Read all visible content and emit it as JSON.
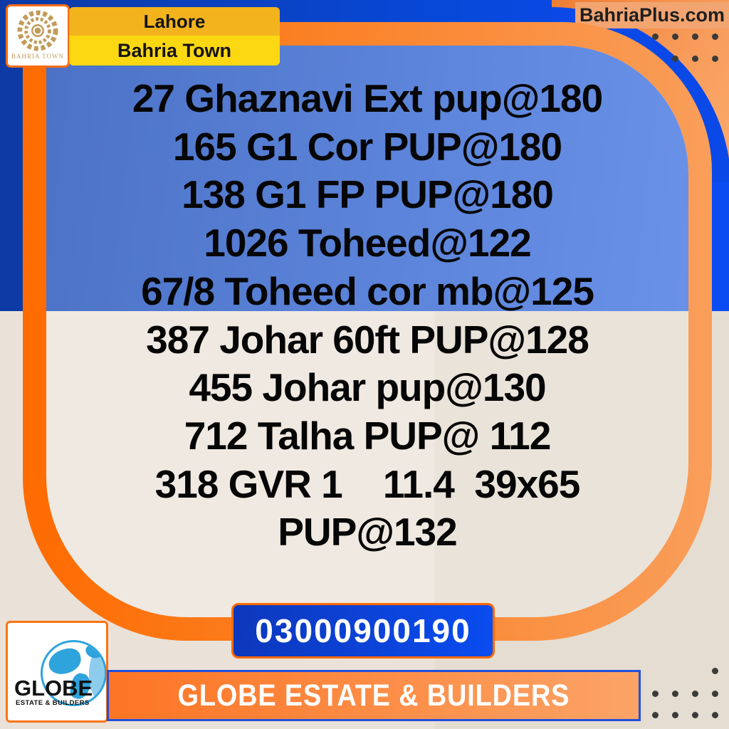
{
  "header": {
    "bahria_logo_name": "BAHRIA TOWN",
    "banner": {
      "line1": "Lahore",
      "line2": "Bahria Town"
    },
    "site": "BahriaPlus.com"
  },
  "listings": [
    "27 Ghaznavi Ext pup@180",
    "165 G1 Cor PUP@180",
    "138 G1 FP PUP@180",
    "1026 Toheed@122",
    "67/8 Toheed cor mb@125",
    "387 Johar 60ft PUP@128",
    "455 Johar pup@130",
    "712 Talha PUP@ 112",
    "318 GVR 1    11.4  39x65",
    "PUP@132"
  ],
  "contact": {
    "phone": "03000900190"
  },
  "footer": {
    "company_banner": "GLOBE ESTATE & BUILDERS",
    "logo_title": "GLOBE",
    "logo_subtitle": "ESTATE & BUILDERS"
  },
  "colors": {
    "accent_orange": "#ff6b00",
    "light_orange": "#f99e5a",
    "bright_blue": "#0a4cf2",
    "navy": "#0d3aa4",
    "card_blue": "#5c84da",
    "beige": "#eae3da",
    "banner_yellow": "#fcd813",
    "banner_amber": "#f3b31d",
    "dot_gray": "#3b3b39",
    "globe_blue": "#2fa3dc"
  }
}
